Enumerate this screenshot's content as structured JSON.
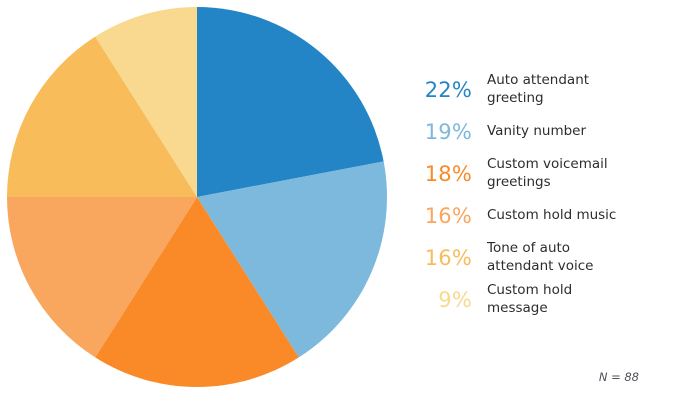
{
  "chart_data": {
    "type": "pie",
    "title": "",
    "categories": [
      "Auto attendant greeting",
      "Vanity number",
      "Custom voicemail greetings",
      "Custom hold music",
      "Tone of auto attendant voice",
      "Custom hold message"
    ],
    "values": [
      22,
      19,
      18,
      16,
      16,
      9
    ],
    "value_format": "percent",
    "colors": [
      "#2385c6",
      "#7cb9dc",
      "#fa8a28",
      "#f9a65e",
      "#f9bc5b",
      "#f9d88f"
    ],
    "start_angle_deg": 0,
    "direction": "clockwise",
    "legend_position": "right",
    "note": "N = 88"
  },
  "legend": {
    "items": [
      {
        "percent": "22%",
        "label": "Auto attendant\ngreeting",
        "color": "#2385c6"
      },
      {
        "percent": "19%",
        "label": "Vanity number",
        "color": "#7cb9dc"
      },
      {
        "percent": "18%",
        "label": "Custom voicemail\ngreetings",
        "color": "#fa8a28"
      },
      {
        "percent": "16%",
        "label": "Custom hold music",
        "color": "#f9a65e"
      },
      {
        "percent": "16%",
        "label": "Tone of auto\nattendant voice",
        "color": "#f9bc5b"
      },
      {
        "percent": "9%",
        "label": "Custom hold\nmessage",
        "color": "#f9d88f"
      }
    ]
  },
  "text_colors": {
    "label": "#2d2d2d",
    "footnote": "#50505a"
  }
}
